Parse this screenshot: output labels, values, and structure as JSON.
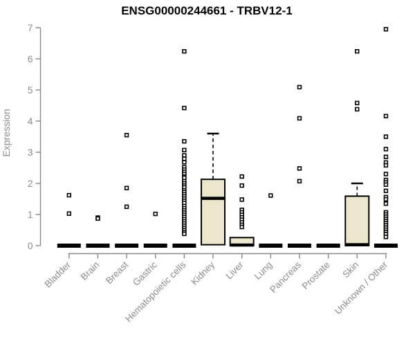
{
  "chart_data": {
    "type": "boxplot",
    "title": "ENSG00000244661 - TRBV12-1",
    "ylabel": "Expression",
    "ylim": [
      0,
      7
    ],
    "yticks": [
      0,
      1,
      2,
      3,
      4,
      5,
      6,
      7
    ],
    "grid": false,
    "categories": [
      "Bladder",
      "Brain",
      "Breast",
      "Gastric",
      "Hematopoietic cells",
      "Kidney",
      "Liver",
      "Lung",
      "Pancreas",
      "Prostate",
      "Skin",
      "Unknown / Other"
    ],
    "boxes": [
      {
        "category": "Bladder",
        "q1": 0,
        "median": 0,
        "q3": 0,
        "whisker_low": 0,
        "whisker_high": 0,
        "outliers": [
          1.62,
          1.03
        ]
      },
      {
        "category": "Brain",
        "q1": 0,
        "median": 0,
        "q3": 0,
        "whisker_low": 0,
        "whisker_high": 0,
        "outliers": [
          0.9,
          0.87
        ]
      },
      {
        "category": "Breast",
        "q1": 0,
        "median": 0,
        "q3": 0,
        "whisker_low": 0,
        "whisker_high": 0,
        "outliers": [
          3.55,
          1.85,
          1.25
        ]
      },
      {
        "category": "Gastric",
        "q1": 0,
        "median": 0,
        "q3": 0,
        "whisker_low": 0,
        "whisker_high": 0,
        "outliers": [
          1.02
        ]
      },
      {
        "category": "Hematopoietic cells",
        "q1": 0,
        "median": 0,
        "q3": 0,
        "whisker_low": 0,
        "whisker_high": 0,
        "outliers": [
          6.24,
          4.42,
          3.35,
          3.07,
          2.9,
          2.79,
          2.68,
          2.52,
          2.44,
          2.37,
          2.3,
          2.22,
          2.18,
          2.07,
          2.0,
          1.93,
          1.87,
          1.78,
          1.72,
          1.65,
          1.58,
          1.51,
          1.44,
          1.37,
          1.27,
          1.2,
          1.13,
          1.06,
          0.99,
          0.92,
          0.85,
          0.78,
          0.71,
          0.64,
          0.57,
          0.5,
          0.43,
          0.38
        ]
      },
      {
        "category": "Kidney",
        "q1": 0.03,
        "median": 1.52,
        "q3": 2.13,
        "whisker_low": 0.03,
        "whisker_high": 3.6,
        "outliers": []
      },
      {
        "category": "Liver",
        "q1": 0,
        "median": 0.02,
        "q3": 0.26,
        "whisker_low": 0,
        "whisker_high": 0.26,
        "outliers": [
          2.22,
          1.93,
          1.48,
          1.15,
          1.07,
          0.99,
          0.91,
          0.83,
          0.75,
          0.67,
          0.6
        ]
      },
      {
        "category": "Lung",
        "q1": 0,
        "median": 0,
        "q3": 0,
        "whisker_low": 0,
        "whisker_high": 0,
        "outliers": [
          1.61
        ]
      },
      {
        "category": "Pancreas",
        "q1": 0,
        "median": 0,
        "q3": 0,
        "whisker_low": 0,
        "whisker_high": 0,
        "outliers": [
          5.09,
          4.09,
          2.48,
          2.07
        ]
      },
      {
        "category": "Prostate",
        "q1": 0,
        "median": 0,
        "q3": 0,
        "whisker_low": 0,
        "whisker_high": 0,
        "outliers": []
      },
      {
        "category": "Skin",
        "q1": 0,
        "median": 0.03,
        "q3": 1.59,
        "whisker_low": 0,
        "whisker_high": 2.0,
        "outliers": [
          6.24,
          4.58,
          4.38
        ]
      },
      {
        "category": "Unknown / Other",
        "q1": 0,
        "median": 0,
        "q3": 0,
        "whisker_low": 0,
        "whisker_high": 0,
        "outliers": [
          6.95,
          4.16,
          3.5,
          3.1,
          2.85,
          2.67,
          2.58,
          2.3,
          2.11,
          2.03,
          1.96,
          1.76,
          1.56,
          1.49,
          1.35,
          1.07,
          1.0,
          0.93,
          0.86,
          0.79,
          0.72,
          0.65,
          0.58,
          0.51,
          0.44,
          0.37,
          0.28
        ]
      }
    ],
    "style": {
      "box_fill": "#ECE7CC",
      "box_stroke": "#000000",
      "median_color": "#000000",
      "whisker_color": "#000000",
      "outlier_marker": "open-square",
      "axis_line_color": "#878787",
      "axis_text_color": "#8c8c8c",
      "title_color": "#000000",
      "background": "#ffffff"
    },
    "legend": null
  }
}
